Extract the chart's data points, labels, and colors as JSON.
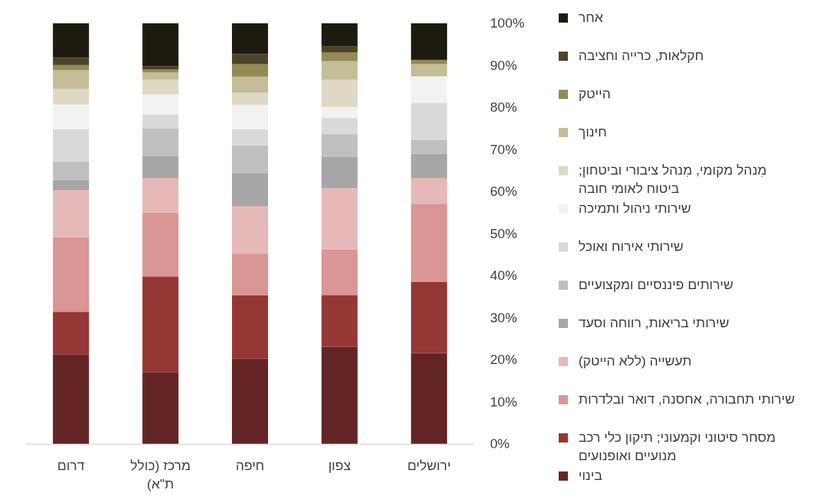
{
  "chart_data": {
    "type": "bar",
    "stacked": true,
    "legend": "right",
    "categories": [
      "דרום",
      "מרכז (כולל ת\"א)",
      "חיפה",
      "צפון",
      "ירושלים"
    ],
    "ylim": [
      0,
      100
    ],
    "yticks": [
      {
        "value": 0,
        "label": "0%"
      },
      {
        "value": 10,
        "label": "10%"
      },
      {
        "value": 20,
        "label": "20%"
      },
      {
        "value": 30,
        "label": "30%"
      },
      {
        "value": 40,
        "label": "40%"
      },
      {
        "value": 50,
        "label": "50%"
      },
      {
        "value": 60,
        "label": "60%"
      },
      {
        "value": 70,
        "label": "70%"
      },
      {
        "value": 80,
        "label": "80%"
      },
      {
        "value": 90,
        "label": "90%"
      },
      {
        "value": 100,
        "label": "100%"
      }
    ],
    "series": [
      {
        "name": "בינוי",
        "color": "#632523",
        "values": [
          21.2,
          17.0,
          20.2,
          23.1,
          21.6
        ]
      },
      {
        "name": "מסחר סיטוני וקמעוני; תיקון כלי רכב מנועיים ואופנועים",
        "color": "#953735",
        "values": [
          10.2,
          22.8,
          15.1,
          12.3,
          16.9
        ]
      },
      {
        "name": "שירותי תחבורה, אחסנה, דואר ובלדרות",
        "color": "#d99694",
        "values": [
          17.7,
          15.2,
          9.9,
          10.9,
          18.6
        ]
      },
      {
        "name": "תעשייה (ללא הייטק)",
        "color": "#e6b9b8",
        "values": [
          11.2,
          8.2,
          11.3,
          14.5,
          6.1
        ]
      },
      {
        "name": "שירותי בריאות, רווחה וסעד",
        "color": "#a6a6a6",
        "values": [
          2.4,
          5.3,
          7.9,
          7.5,
          5.8
        ]
      },
      {
        "name": "שירותים פיננסיים ומקצועיים",
        "color": "#bfbfbf",
        "values": [
          4.4,
          6.5,
          6.6,
          5.4,
          3.3
        ]
      },
      {
        "name": "שירותי אירוח ואוכל",
        "color": "#d9d9d9",
        "values": [
          7.7,
          3.4,
          3.8,
          3.8,
          8.8
        ]
      },
      {
        "name": "שירותי ניהול ותמיכה",
        "color": "#f2f2f2",
        "values": [
          5.9,
          4.7,
          5.8,
          2.6,
          6.3
        ]
      },
      {
        "name": "מִנהל מקומי, מִנהל ציבורי וביטחון; ביטוח לאומי חובה",
        "color": "#ddd9c3",
        "values": [
          3.7,
          3.5,
          2.9,
          6.5,
          0
        ]
      },
      {
        "name": "חינוך",
        "color": "#c4bd97",
        "values": [
          4.5,
          1.7,
          3.8,
          4.4,
          2.9
        ]
      },
      {
        "name": "הייטק",
        "color": "#948a54",
        "values": [
          1.2,
          0.7,
          3.0,
          2.1,
          1.0
        ]
      },
      {
        "name": "חקלאות, כרייה וחציבה",
        "color": "#4a452a",
        "values": [
          1.8,
          0.9,
          2.4,
          1.5,
          0
        ]
      },
      {
        "name": "אחר",
        "color": "#1d1b10",
        "values": [
          8.1,
          10.1,
          7.3,
          5.4,
          8.7
        ]
      }
    ]
  }
}
